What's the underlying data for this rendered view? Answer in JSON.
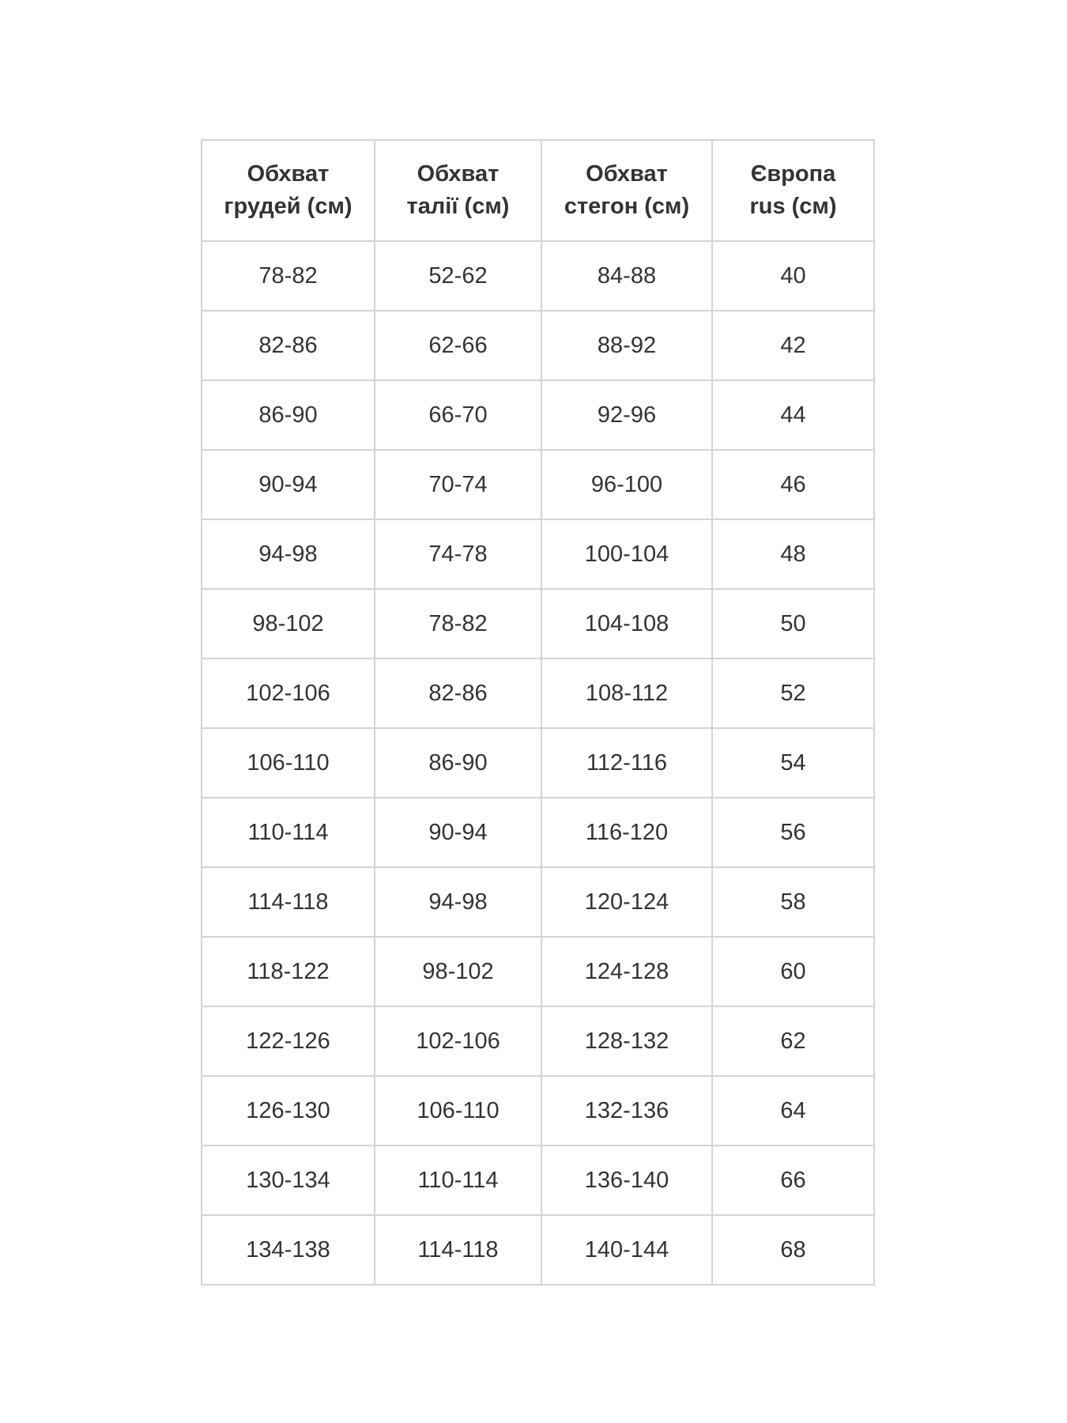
{
  "table": {
    "headers": [
      [
        "Обхват",
        "грудей (см)"
      ],
      [
        "Обхват",
        "талії (см)"
      ],
      [
        "Обхват",
        "стегон (см)"
      ],
      [
        "Європа",
        "rus (см)"
      ]
    ],
    "rows": [
      [
        "78-82",
        "52-62",
        "84-88",
        "40"
      ],
      [
        "82-86",
        "62-66",
        "88-92",
        "42"
      ],
      [
        "86-90",
        "66-70",
        "92-96",
        "44"
      ],
      [
        "90-94",
        "70-74",
        "96-100",
        "46"
      ],
      [
        "94-98",
        "74-78",
        "100-104",
        "48"
      ],
      [
        "98-102",
        "78-82",
        "104-108",
        "50"
      ],
      [
        "102-106",
        "82-86",
        "108-112",
        "52"
      ],
      [
        "106-110",
        "86-90",
        "112-116",
        "54"
      ],
      [
        "110-114",
        "90-94",
        "116-120",
        "56"
      ],
      [
        "114-118",
        "94-98",
        "120-124",
        "58"
      ],
      [
        "118-122",
        "98-102",
        "124-128",
        "60"
      ],
      [
        "122-126",
        "102-106",
        "128-132",
        "62"
      ],
      [
        "126-130",
        "106-110",
        "132-136",
        "64"
      ],
      [
        "130-134",
        "110-114",
        "136-140",
        "66"
      ],
      [
        "134-138",
        "114-118",
        "140-144",
        "68"
      ]
    ]
  }
}
